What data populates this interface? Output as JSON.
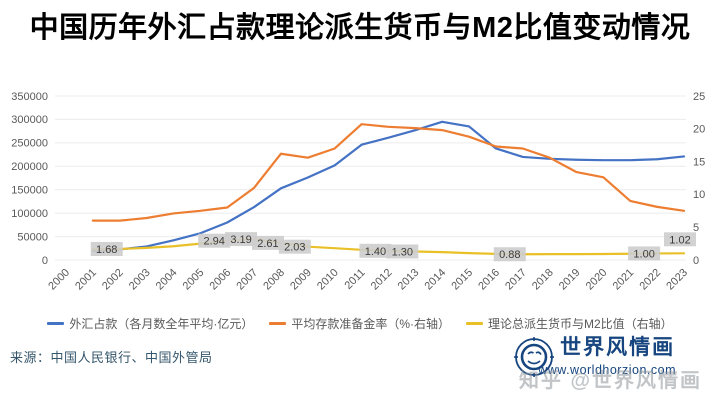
{
  "title": "中国历年外汇占款理论派生货币与M2比值变动情况",
  "chart_data": {
    "type": "line",
    "x": [
      "2000",
      "2001",
      "2002",
      "2003",
      "2004",
      "2005",
      "2006",
      "2007",
      "2008",
      "2009",
      "2010",
      "2011",
      "2012",
      "2013",
      "2014",
      "2015",
      "2016",
      "2017",
      "2018",
      "2019",
      "2020",
      "2021",
      "2022",
      "2023"
    ],
    "left_axis": {
      "min": 0,
      "max": 350000,
      "step": 50000
    },
    "right_axis": {
      "min": 0,
      "max": 25,
      "step": 5
    },
    "grid": true,
    "legend_position": "bottom",
    "series": [
      {
        "name": "外汇占款（各月数全年平均·亿元）",
        "axis": "left",
        "color": "#4472c4",
        "values": [
          null,
          19000,
          22500,
          29000,
          42000,
          57000,
          80000,
          113000,
          153000,
          176000,
          202000,
          246000,
          261000,
          277000,
          295000,
          285000,
          238000,
          220000,
          216000,
          214000,
          213000,
          213000,
          215000,
          221000
        ]
      },
      {
        "name": "平均存款准备金率（%·右轴）",
        "axis": "right",
        "color": "#ed7d31",
        "values": [
          null,
          6.0,
          6.0,
          6.4,
          7.1,
          7.5,
          8.0,
          11.0,
          16.2,
          15.6,
          17.0,
          20.7,
          20.3,
          20.1,
          19.8,
          18.8,
          17.3,
          17.0,
          15.6,
          13.4,
          12.6,
          9.0,
          8.1,
          7.5
        ]
      },
      {
        "name": "理论总派生货币与M2比值（右轴）",
        "axis": "right",
        "color": "#e9c027",
        "values": [
          null,
          1.6,
          1.68,
          1.85,
          2.1,
          2.5,
          2.94,
          3.19,
          2.61,
          2.03,
          1.8,
          1.55,
          1.4,
          1.3,
          1.2,
          1.05,
          0.93,
          0.88,
          0.9,
          0.9,
          0.92,
          0.95,
          1.0,
          1.02
        ]
      }
    ],
    "point_labels": [
      {
        "x": "2002",
        "text": "1.68"
      },
      {
        "x": "2006",
        "text": "2.94"
      },
      {
        "x": "2007",
        "text": "3.19"
      },
      {
        "x": "2008",
        "text": "2.61"
      },
      {
        "x": "2009",
        "text": "2.03"
      },
      {
        "x": "2012",
        "text": "1.40"
      },
      {
        "x": "2013",
        "text": "1.30"
      },
      {
        "x": "2017",
        "text": "0.88"
      },
      {
        "x": "2022",
        "text": "1.00"
      },
      {
        "x": "2023",
        "text": "1.02",
        "raised": true
      }
    ]
  },
  "source": "来源：中国人民银行、中国外管局",
  "logo": {
    "name": "世界风情画",
    "url": "www.worldhorzion.com"
  },
  "watermark": "知乎 @世界风情画",
  "colors": {
    "axis_text": "#595959",
    "grid": "#ececec",
    "label_bg": "#cdcdcd",
    "label_text": "#3b3b3b",
    "logo_blue": "#16457f"
  }
}
